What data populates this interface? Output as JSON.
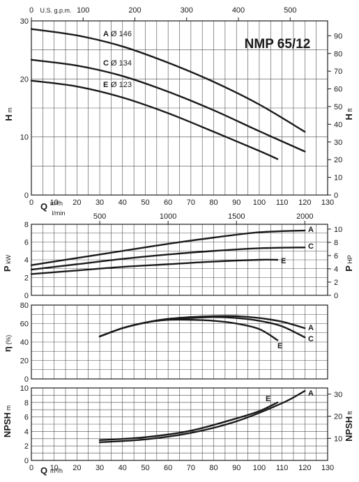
{
  "title": "NMP 65/12",
  "chart_data": {
    "type": "line",
    "title": "NMP 65/12",
    "x": {
      "label": "Q",
      "unit": "m³/h",
      "range": [
        0,
        130
      ],
      "ticks": [
        0,
        10,
        20,
        30,
        40,
        50,
        60,
        70,
        80,
        90,
        100,
        110,
        120,
        130
      ],
      "secondary_axes": [
        {
          "label": "U.S. g.p.m.",
          "ticks": [
            0,
            100,
            200,
            300,
            400,
            500
          ]
        },
        {
          "label": "l/min",
          "ticks": [
            500,
            1000,
            1500,
            2000
          ]
        }
      ]
    },
    "panels": [
      {
        "id": "head",
        "ylabel": "H",
        "yunit": "m",
        "ylim": [
          0,
          30
        ],
        "yticks": [
          0,
          10,
          20,
          30
        ],
        "y2label": "H",
        "y2unit": "ft",
        "y2ticks": [
          0,
          10,
          20,
          30,
          40,
          50,
          60,
          70,
          80,
          90
        ],
        "series": [
          {
            "name": "A",
            "impeller": "Ø 146",
            "x": [
              0,
              20,
              40,
              60,
              80,
              100,
              120
            ],
            "y": [
              28.6,
              27.5,
              25.6,
              22.8,
              19.5,
              15.6,
              10.9
            ]
          },
          {
            "name": "C",
            "impeller": "Ø 134",
            "x": [
              0,
              20,
              40,
              60,
              80,
              100,
              120
            ],
            "y": [
              23.3,
              22.3,
              20.5,
              17.8,
              14.6,
              11.0,
              7.5
            ]
          },
          {
            "name": "E",
            "impeller": "Ø 123",
            "x": [
              0,
              20,
              40,
              60,
              80,
              100,
              108
            ],
            "y": [
              19.7,
              18.7,
              16.8,
              14.1,
              10.9,
              7.6,
              6.2
            ]
          }
        ]
      },
      {
        "id": "power",
        "ylabel": "P",
        "yunit": "kW",
        "ylim": [
          0,
          8
        ],
        "yticks": [
          0,
          2,
          4,
          6,
          8
        ],
        "y2label": "P",
        "y2unit": "HP",
        "y2ticks": [
          0,
          2,
          4,
          6,
          8,
          10
        ],
        "series": [
          {
            "name": "A",
            "x": [
              0,
              20,
              40,
              60,
              80,
              100,
              120
            ],
            "y": [
              3.4,
              4.2,
              5.0,
              5.8,
              6.5,
              7.1,
              7.3
            ]
          },
          {
            "name": "C",
            "x": [
              0,
              20,
              40,
              60,
              80,
              100,
              120
            ],
            "y": [
              2.9,
              3.5,
              4.1,
              4.6,
              5.0,
              5.3,
              5.4
            ]
          },
          {
            "name": "E",
            "x": [
              0,
              20,
              40,
              60,
              80,
              100,
              108
            ],
            "y": [
              2.4,
              2.8,
              3.2,
              3.5,
              3.8,
              4.0,
              4.0
            ]
          }
        ]
      },
      {
        "id": "efficiency",
        "ylabel": "η",
        "yunit": "(%)",
        "ylim": [
          0,
          80
        ],
        "yticks": [
          0,
          20,
          40,
          60,
          80
        ],
        "series": [
          {
            "name": "A",
            "x": [
              30,
              40,
              50,
              60,
              70,
              80,
              90,
              100,
              110,
              120
            ],
            "y": [
              46,
              55,
              61,
              65,
              67,
              68,
              68,
              66,
              62,
              55
            ]
          },
          {
            "name": "C",
            "x": [
              30,
              40,
              50,
              60,
              70,
              80,
              90,
              100,
              110,
              120
            ],
            "y": [
              46,
              55,
              61,
              65,
              66,
              67,
              66,
              63,
              57,
              45
            ]
          },
          {
            "name": "E",
            "x": [
              30,
              40,
              50,
              60,
              70,
              80,
              90,
              100,
              108
            ],
            "y": [
              46,
              55,
              61,
              64,
              64,
              63,
              60,
              54,
              42
            ]
          }
        ]
      },
      {
        "id": "npsh",
        "ylabel": "NPSH",
        "yunit": "m",
        "ylim": [
          0,
          10
        ],
        "yticks": [
          0,
          2,
          4,
          6,
          8,
          10
        ],
        "y2label": "NPSH",
        "y2unit": "ft",
        "y2ticks": [
          10,
          20,
          30
        ],
        "series": [
          {
            "name": "A",
            "x": [
              30,
              50,
              70,
              90,
              110,
              120
            ],
            "y": [
              2.5,
              2.9,
              3.8,
              5.4,
              7.9,
              9.6
            ]
          },
          {
            "name": "E",
            "x": [
              30,
              50,
              70,
              90,
              100,
              108
            ],
            "y": [
              2.8,
              3.2,
              4.1,
              5.8,
              6.8,
              8.0
            ]
          }
        ]
      }
    ]
  }
}
